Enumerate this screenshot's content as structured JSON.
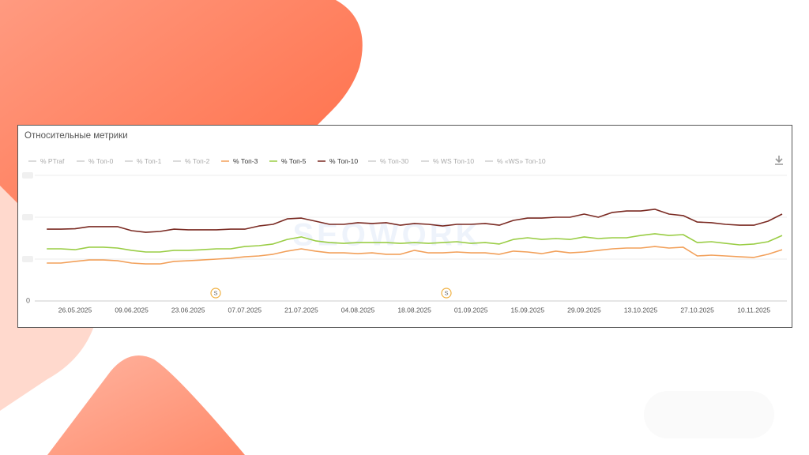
{
  "chart_data": {
    "type": "line",
    "title": "Относительные метрики",
    "watermark": "SEOWORK",
    "annotations": [
      {
        "label": "S"
      },
      {
        "label": "S"
      }
    ],
    "categories": [
      null,
      null,
      "26.05.2025",
      null,
      null,
      null,
      "09.06.2025",
      null,
      null,
      null,
      "23.06.2025",
      null,
      null,
      null,
      "07.07.2025",
      null,
      null,
      null,
      "21.07.2025",
      null,
      null,
      null,
      "04.08.2025",
      null,
      null,
      null,
      "18.08.2025",
      null,
      null,
      null,
      "01.09.2025",
      null,
      null,
      null,
      "15.09.2025",
      null,
      null,
      null,
      "29.09.2025",
      null,
      null,
      null,
      "13.10.2025",
      null,
      null,
      null,
      "27.10.2025",
      null,
      null,
      null,
      "10.11.2025",
      null,
      null
    ],
    "ylim": [
      0,
      60
    ],
    "yticks": [
      0,
      20,
      40,
      60
    ],
    "grid": true,
    "legend": "top-left",
    "series": [
      {
        "name": "% PTraf",
        "color": "#c8c8c8",
        "visible": false
      },
      {
        "name": "% Топ-0",
        "color": "#c8c8c8",
        "visible": false
      },
      {
        "name": "% Топ-1",
        "color": "#c8c8c8",
        "visible": false
      },
      {
        "name": "% Топ-2",
        "color": "#c8c8c8",
        "visible": false
      },
      {
        "name": "% Топ-3",
        "color": "#f2a05a",
        "visible": true,
        "values": [
          18.1,
          18.1,
          18.9,
          19.6,
          19.6,
          19.2,
          18.1,
          17.7,
          17.7,
          18.9,
          19.2,
          19.6,
          20.0,
          20.4,
          21.1,
          21.5,
          22.3,
          23.8,
          24.9,
          23.8,
          23.0,
          23.0,
          22.6,
          23.0,
          22.3,
          22.3,
          24.2,
          23.0,
          23.0,
          23.4,
          23.0,
          23.0,
          22.3,
          23.8,
          23.4,
          22.6,
          23.8,
          23.0,
          23.4,
          24.2,
          24.9,
          25.3,
          25.3,
          26.0,
          25.3,
          25.7,
          21.5,
          21.9,
          21.5,
          21.1,
          20.8,
          22.3,
          24.5
        ]
      },
      {
        "name": "% Топ-5",
        "color": "#9acd45",
        "visible": true,
        "values": [
          24.9,
          24.9,
          24.5,
          25.7,
          25.7,
          25.3,
          24.2,
          23.4,
          23.4,
          24.2,
          24.2,
          24.5,
          24.9,
          24.9,
          26.0,
          26.4,
          27.2,
          29.4,
          30.6,
          28.7,
          27.9,
          27.5,
          27.9,
          27.9,
          27.9,
          27.5,
          27.9,
          27.5,
          27.9,
          28.3,
          27.5,
          27.9,
          27.2,
          29.4,
          30.2,
          29.4,
          29.8,
          29.4,
          30.6,
          29.8,
          30.2,
          30.2,
          31.3,
          32.1,
          31.3,
          31.7,
          27.9,
          28.3,
          27.5,
          26.8,
          27.2,
          28.3,
          31.3
        ]
      },
      {
        "name": "% Топ-10",
        "color": "#7a2a22",
        "visible": true,
        "values": [
          34.3,
          34.3,
          34.5,
          35.5,
          35.5,
          35.5,
          33.6,
          32.8,
          33.2,
          34.3,
          34.0,
          34.0,
          34.0,
          34.3,
          34.3,
          35.8,
          36.6,
          39.2,
          39.6,
          38.1,
          36.6,
          36.6,
          37.4,
          37.0,
          37.4,
          36.2,
          37.0,
          36.6,
          35.8,
          36.6,
          36.6,
          37.0,
          36.2,
          38.5,
          39.6,
          39.6,
          40.0,
          40.0,
          41.5,
          40.0,
          42.3,
          43.0,
          43.0,
          43.8,
          41.5,
          40.8,
          37.7,
          37.4,
          36.6,
          36.2,
          36.2,
          38.1,
          41.5
        ]
      },
      {
        "name": "% Топ-30",
        "color": "#c8c8c8",
        "visible": false
      },
      {
        "name": "% WS Топ-10",
        "color": "#c8c8c8",
        "visible": false
      },
      {
        "name": "% «WS» Топ-10",
        "color": "#c8c8c8",
        "visible": false
      }
    ]
  }
}
